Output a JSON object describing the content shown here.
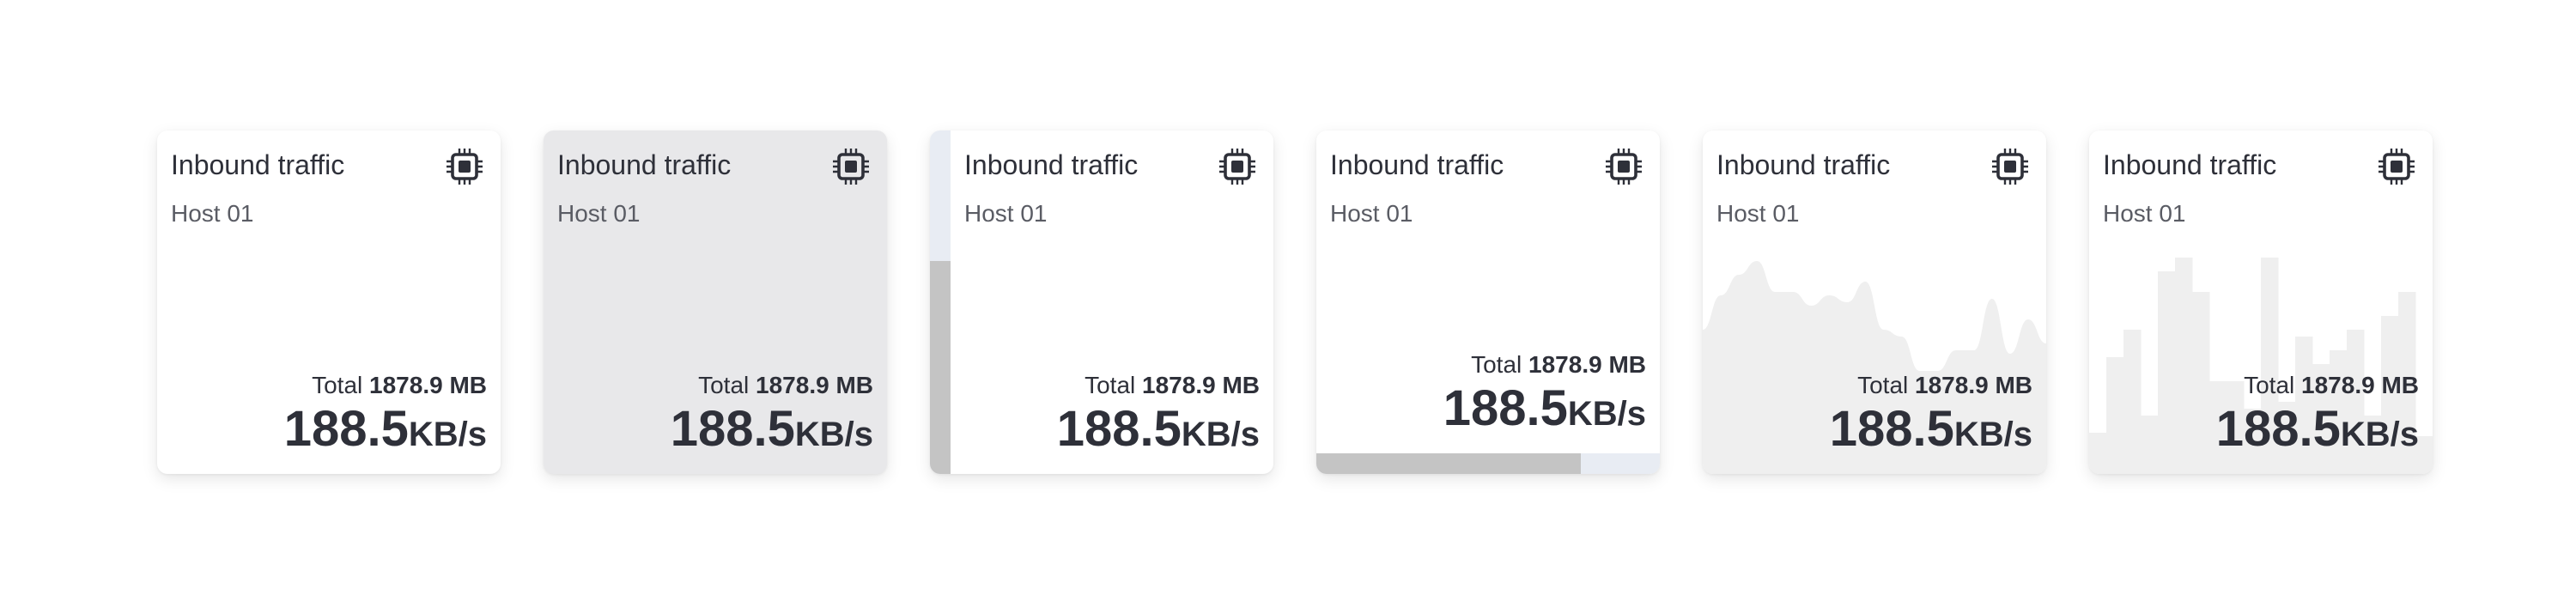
{
  "cards": [
    {
      "variant": "plain",
      "title": "Inbound traffic",
      "host": "Host 01",
      "total_label": "Total",
      "total_value": "1878.9 MB",
      "value": "188.5",
      "unit": "KB/s",
      "icon": "cpu-chip-icon"
    },
    {
      "variant": "gray",
      "title": "Inbound traffic",
      "host": "Host 01",
      "total_label": "Total",
      "total_value": "1878.9 MB",
      "value": "188.5",
      "unit": "KB/s",
      "icon": "cpu-chip-icon"
    },
    {
      "variant": "vertical-progress",
      "progress_percent": 62,
      "title": "Inbound traffic",
      "host": "Host 01",
      "total_label": "Total",
      "total_value": "1878.9 MB",
      "value": "188.5",
      "unit": "KB/s",
      "icon": "cpu-chip-icon"
    },
    {
      "variant": "horizontal-progress",
      "progress_percent": 77,
      "title": "Inbound traffic",
      "host": "Host 01",
      "total_label": "Total",
      "total_value": "1878.9 MB",
      "value": "188.5",
      "unit": "KB/s",
      "icon": "cpu-chip-icon"
    },
    {
      "variant": "area-sparkline",
      "title": "Inbound traffic",
      "host": "Host 01",
      "total_label": "Total",
      "total_value": "1878.9 MB",
      "value": "188.5",
      "unit": "KB/s",
      "icon": "cpu-chip-icon",
      "series": [
        42,
        52,
        58,
        62,
        53,
        53,
        49,
        52,
        50,
        56,
        42,
        40,
        30,
        30,
        36,
        36,
        51,
        35,
        45,
        38
      ]
    },
    {
      "variant": "bar-sparkline",
      "title": "Inbound traffic",
      "host": "Host 01",
      "total_label": "Total",
      "total_value": "1878.9 MB",
      "value": "188.5",
      "unit": "KB/s",
      "icon": "cpu-chip-icon",
      "series": [
        12,
        34,
        42,
        17,
        59,
        63,
        53,
        27,
        27,
        19,
        63,
        21,
        40,
        32,
        36,
        42,
        17,
        46,
        53,
        11
      ]
    }
  ],
  "colors": {
    "text": "#2e3039",
    "card_gray": "#e8e8ea",
    "chart_fill": "#efefef",
    "progress_fill": "#c4c4c4",
    "progress_track": "#e8ecf3"
  }
}
